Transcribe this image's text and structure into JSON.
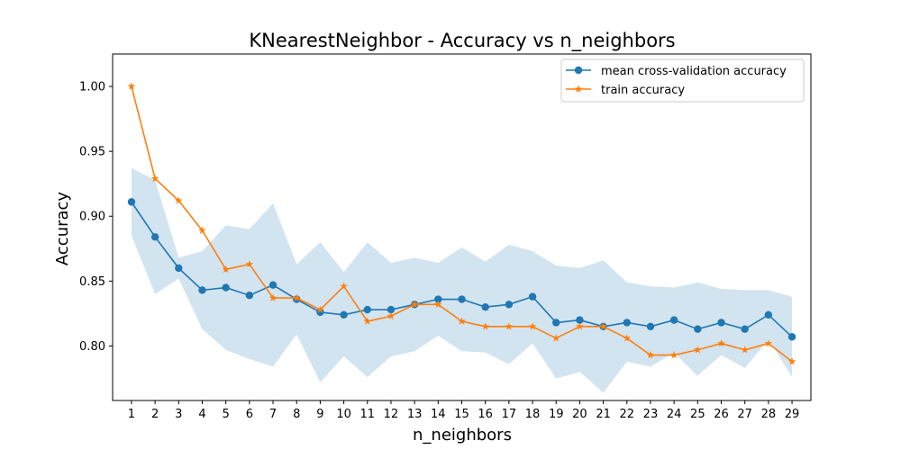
{
  "chart_data": {
    "type": "line",
    "title": "KNearestNeighbor - Accuracy vs n_neighbors",
    "xlabel": "n_neighbors",
    "ylabel": "Accuracy",
    "ylim": [
      0.758,
      1.025
    ],
    "xlim": [
      0.2,
      29.8
    ],
    "x": [
      1,
      2,
      3,
      4,
      5,
      6,
      7,
      8,
      9,
      10,
      11,
      12,
      13,
      14,
      15,
      16,
      17,
      18,
      19,
      20,
      21,
      22,
      23,
      24,
      25,
      26,
      27,
      28,
      29
    ],
    "xticks": [
      "1",
      "2",
      "3",
      "4",
      "5",
      "6",
      "7",
      "8",
      "9",
      "10",
      "11",
      "12",
      "13",
      "14",
      "15",
      "16",
      "17",
      "18",
      "19",
      "20",
      "21",
      "22",
      "23",
      "24",
      "25",
      "26",
      "27",
      "28",
      "29"
    ],
    "yticks": [
      0.8,
      0.85,
      0.9,
      0.95,
      1.0
    ],
    "ytick_labels": [
      "0.80",
      "0.85",
      "0.90",
      "0.95",
      "1.00"
    ],
    "grid": false,
    "legend_position": "top-right",
    "series": [
      {
        "name": "mean cross-validation accuracy",
        "color": "#1f77b4",
        "marker": "circle",
        "values": [
          0.911,
          0.884,
          0.86,
          0.843,
          0.845,
          0.839,
          0.847,
          0.836,
          0.826,
          0.824,
          0.828,
          0.828,
          0.832,
          0.836,
          0.836,
          0.83,
          0.832,
          0.838,
          0.818,
          0.82,
          0.815,
          0.818,
          0.815,
          0.82,
          0.813,
          0.818,
          0.813,
          0.824,
          0.807
        ]
      },
      {
        "name": "train accuracy",
        "color": "#ff7f0e",
        "marker": "star",
        "values": [
          1.0,
          0.929,
          0.912,
          0.889,
          0.859,
          0.863,
          0.837,
          0.837,
          0.828,
          0.846,
          0.819,
          0.823,
          0.832,
          0.832,
          0.819,
          0.815,
          0.815,
          0.815,
          0.806,
          0.815,
          0.815,
          0.806,
          0.793,
          0.793,
          0.797,
          0.802,
          0.797,
          0.802,
          0.788
        ]
      }
    ],
    "band": {
      "series": "mean cross-validation accuracy",
      "color": "#1f77b4",
      "opacity": 0.2,
      "upper": [
        0.937,
        0.928,
        0.868,
        0.873,
        0.893,
        0.89,
        0.91,
        0.863,
        0.88,
        0.857,
        0.88,
        0.864,
        0.868,
        0.864,
        0.876,
        0.865,
        0.878,
        0.873,
        0.862,
        0.86,
        0.866,
        0.849,
        0.846,
        0.845,
        0.849,
        0.844,
        0.843,
        0.843,
        0.838
      ],
      "lower": [
        0.885,
        0.84,
        0.852,
        0.813,
        0.797,
        0.79,
        0.784,
        0.809,
        0.772,
        0.792,
        0.776,
        0.792,
        0.796,
        0.808,
        0.796,
        0.795,
        0.786,
        0.802,
        0.775,
        0.78,
        0.764,
        0.788,
        0.784,
        0.795,
        0.777,
        0.793,
        0.783,
        0.805,
        0.776
      ]
    }
  }
}
